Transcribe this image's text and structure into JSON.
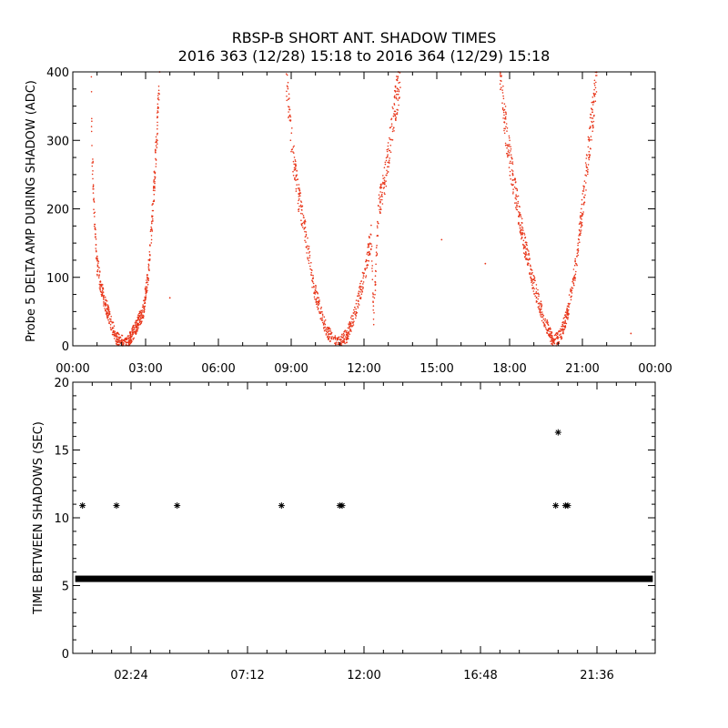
{
  "title_line1": "RBSP-B SHORT ANT. SHADOW TIMES",
  "title_line2": "2016 363 (12/28) 15:18 to 2016 364 (12/29) 15:18",
  "colors": {
    "scatter": "#e8361a",
    "ink": "#000000",
    "background": "#ffffff"
  },
  "chart_data": [
    {
      "type": "scatter",
      "ylabel": "Probe 5 DELTA AMP DURING SHADOW (ADC)",
      "xlabel": "",
      "xlim": [
        0,
        24
      ],
      "ylim": [
        0,
        400
      ],
      "x_tick_labels": [
        "00:00",
        "03:00",
        "06:00",
        "09:00",
        "12:00",
        "15:00",
        "18:00",
        "21:00",
        "00:00"
      ],
      "x_ticks_hours": [
        0,
        3,
        6,
        9,
        12,
        15,
        18,
        21,
        24
      ],
      "y_ticks": [
        0,
        100,
        200,
        300,
        400
      ],
      "grid": false,
      "shadow_passes_hours_minimum": [
        {
          "start": 0.6,
          "minimum": 2.2,
          "end": 3.6
        },
        {
          "start": 8.8,
          "minimum": 10.9,
          "end": 13.5
        },
        {
          "start": 17.6,
          "minimum": 19.8,
          "end": 21.7
        }
      ],
      "series": [
        {
          "color": "#e8361a",
          "points_sample": [
            [
              0.75,
              400
            ],
            [
              0.8,
              280
            ],
            [
              0.9,
              180
            ],
            [
              1.0,
              120
            ],
            [
              1.2,
              80
            ],
            [
              1.4,
              55
            ],
            [
              1.6,
              30
            ],
            [
              1.8,
              12
            ],
            [
              2.2,
              2
            ],
            [
              2.5,
              20
            ],
            [
              2.7,
              35
            ],
            [
              2.9,
              50
            ],
            [
              3.1,
              100
            ],
            [
              3.3,
              200
            ],
            [
              3.5,
              330
            ],
            [
              3.6,
              400
            ],
            [
              8.8,
              400
            ],
            [
              9.0,
              300
            ],
            [
              9.3,
              220
            ],
            [
              9.6,
              160
            ],
            [
              9.9,
              90
            ],
            [
              10.2,
              50
            ],
            [
              10.5,
              20
            ],
            [
              10.9,
              2
            ],
            [
              11.3,
              15
            ],
            [
              11.6,
              45
            ],
            [
              12.0,
              100
            ],
            [
              12.3,
              160
            ],
            [
              12.6,
              200
            ],
            [
              12.9,
              250
            ],
            [
              13.2,
              330
            ],
            [
              13.5,
              400
            ],
            [
              17.6,
              400
            ],
            [
              17.9,
              300
            ],
            [
              18.2,
              230
            ],
            [
              18.6,
              150
            ],
            [
              19.0,
              90
            ],
            [
              19.4,
              40
            ],
            [
              19.8,
              5
            ],
            [
              20.1,
              15
            ],
            [
              20.4,
              50
            ],
            [
              20.7,
              110
            ],
            [
              21.0,
              200
            ],
            [
              21.3,
              300
            ],
            [
              21.6,
              400
            ],
            [
              4.0,
              70
            ],
            [
              12.4,
              40
            ],
            [
              15.2,
              155
            ],
            [
              17.0,
              120
            ],
            [
              23.0,
              18
            ]
          ]
        }
      ]
    },
    {
      "type": "scatter",
      "ylabel": "TIME BETWEEN SHADOWS (SEC)",
      "xlabel": "",
      "xlim": [
        0,
        24
      ],
      "ylim": [
        0,
        20
      ],
      "x_tick_labels": [
        "02:24",
        "07:12",
        "12:00",
        "16:48",
        "21:36"
      ],
      "x_ticks_hours": [
        2.4,
        7.2,
        12.0,
        16.8,
        21.6
      ],
      "y_ticks": [
        0,
        5,
        10,
        15,
        20
      ],
      "grid": false,
      "series": [
        {
          "color": "#000000",
          "marker": "asterisk",
          "baseline_band": {
            "x_range": [
              0.1,
              23.9
            ],
            "value": 5.5
          },
          "points": [
            [
              0.4,
              10.9
            ],
            [
              1.8,
              10.9
            ],
            [
              4.3,
              10.9
            ],
            [
              8.6,
              10.9
            ],
            [
              11.0,
              10.9
            ],
            [
              11.1,
              10.9
            ],
            [
              19.9,
              10.9
            ],
            [
              20.3,
              10.9
            ],
            [
              20.4,
              10.9
            ],
            [
              20.0,
              16.3
            ]
          ]
        }
      ]
    }
  ]
}
